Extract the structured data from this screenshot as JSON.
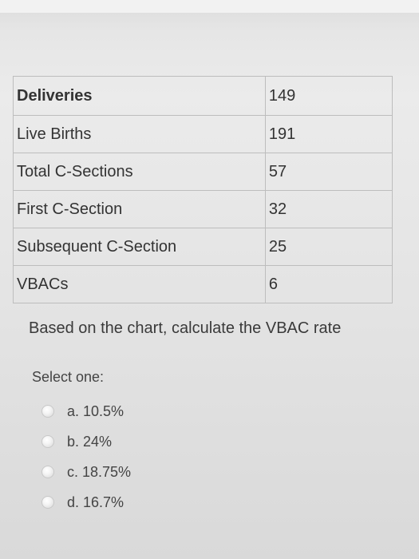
{
  "table": {
    "rows": [
      {
        "label": "Deliveries",
        "value": "149"
      },
      {
        "label": "Live Births",
        "value": "191"
      },
      {
        "label": "Total C-Sections",
        "value": "57"
      },
      {
        "label": "First C-Section",
        "value": "32"
      },
      {
        "label": "Subsequent C-Section",
        "value": "25"
      },
      {
        "label": "VBACs",
        "value": "6"
      }
    ]
  },
  "question": "Based on the chart, calculate the VBAC rate",
  "select_prompt": "Select one:",
  "options": [
    {
      "label": "a. 10.5%"
    },
    {
      "label": "b. 24%"
    },
    {
      "label": "c. 18.75%"
    },
    {
      "label": "d. 16.7%"
    }
  ]
}
